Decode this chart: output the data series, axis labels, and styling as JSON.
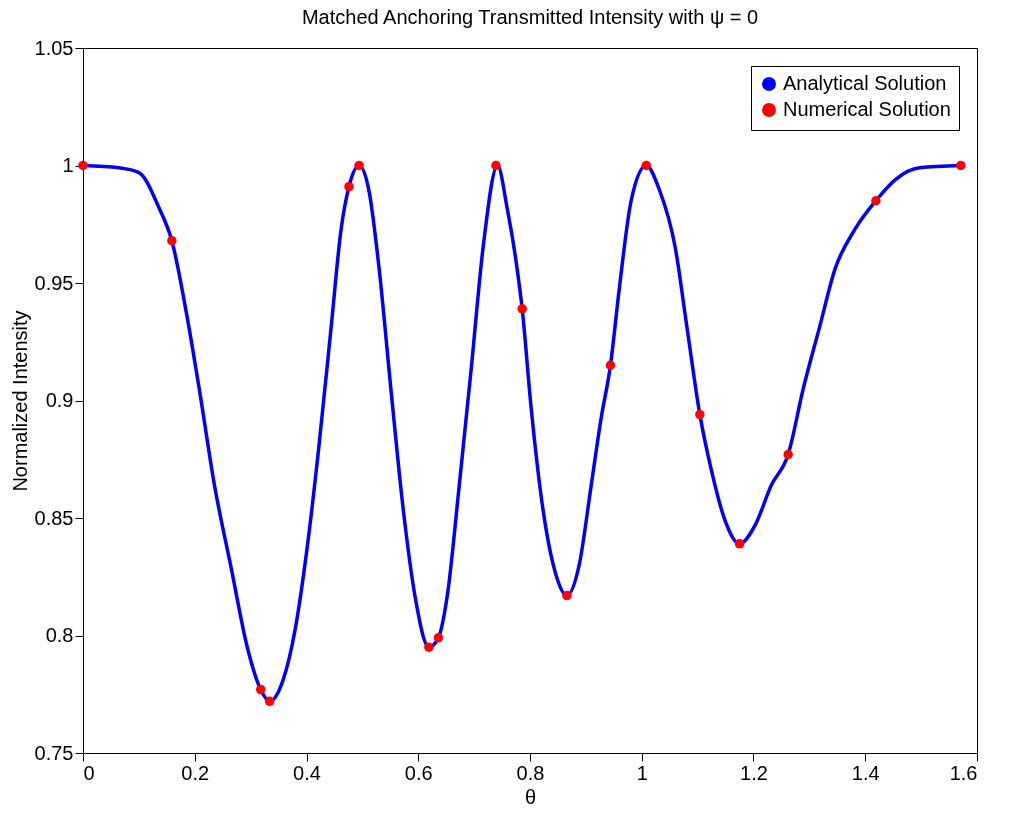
{
  "chart_data": {
    "type": "line",
    "title": "Matched Anchoring Transmitted Intensity with ψ = 0",
    "xlabel": "θ",
    "ylabel": "Normalized Intensity",
    "xlim": [
      0,
      1.6
    ],
    "xticks": [
      0,
      0.2,
      0.4,
      0.6,
      0.8,
      1,
      1.2,
      1.4,
      1.6
    ],
    "ylim": [
      0.75,
      1.05
    ],
    "yticks": [
      0.75,
      0.8,
      0.85,
      0.9,
      0.95,
      1,
      1.05
    ],
    "grid": false,
    "legend": "top right",
    "series": [
      {
        "name": "Analytical Solution",
        "type": "line",
        "color": "#0000ff",
        "line_style": "solid",
        "marker": "none",
        "x": [
          0,
          0.064,
          0.1,
          0.136,
          0.159,
          0.186,
          0.208,
          0.236,
          0.265,
          0.294,
          0.318,
          0.334,
          0.358,
          0.38,
          0.401,
          0.422,
          0.444,
          0.462,
          0.476,
          0.494,
          0.512,
          0.53,
          0.551,
          0.573,
          0.594,
          0.619,
          0.636,
          0.652,
          0.673,
          0.695,
          0.716,
          0.742,
          0.759,
          0.777,
          0.786,
          0.802,
          0.823,
          0.845,
          0.866,
          0.888,
          0.909,
          0.927,
          0.944,
          0.96,
          0.981,
          1.008,
          1.031,
          1.06,
          1.081,
          1.104,
          1.124,
          1.149,
          1.175,
          1.203,
          1.232,
          1.262,
          1.289,
          1.318,
          1.346,
          1.382,
          1.419,
          1.454,
          1.497,
          1.571
        ],
        "values": [
          1,
          0.999,
          0.997,
          0.982,
          0.968,
          0.936,
          0.905,
          0.863,
          0.829,
          0.795,
          0.777,
          0.772,
          0.781,
          0.803,
          0.837,
          0.88,
          0.931,
          0.973,
          0.991,
          1,
          0.989,
          0.956,
          0.905,
          0.854,
          0.817,
          0.795,
          0.799,
          0.817,
          0.863,
          0.914,
          0.965,
          1,
          0.982,
          0.956,
          0.939,
          0.897,
          0.854,
          0.827,
          0.817,
          0.83,
          0.863,
          0.892,
          0.915,
          0.948,
          0.985,
          1,
          0.99,
          0.965,
          0.931,
          0.894,
          0.871,
          0.849,
          0.839,
          0.847,
          0.864,
          0.877,
          0.905,
          0.931,
          0.956,
          0.973,
          0.985,
          0.994,
          0.999,
          1
        ]
      },
      {
        "name": "Numerical Solution",
        "type": "scatter",
        "color": "#ff0000",
        "marker": "circle",
        "x": [
          0,
          0.159,
          0.318,
          0.334,
          0.476,
          0.494,
          0.619,
          0.636,
          0.739,
          0.786,
          0.866,
          0.944,
          1.008,
          1.104,
          1.175,
          1.262,
          1.419,
          1.571
        ],
        "values": [
          1,
          0.968,
          0.777,
          0.772,
          0.991,
          1,
          0.795,
          0.799,
          1,
          0.939,
          0.817,
          0.915,
          1,
          0.894,
          0.839,
          0.877,
          0.985,
          1
        ]
      }
    ]
  }
}
